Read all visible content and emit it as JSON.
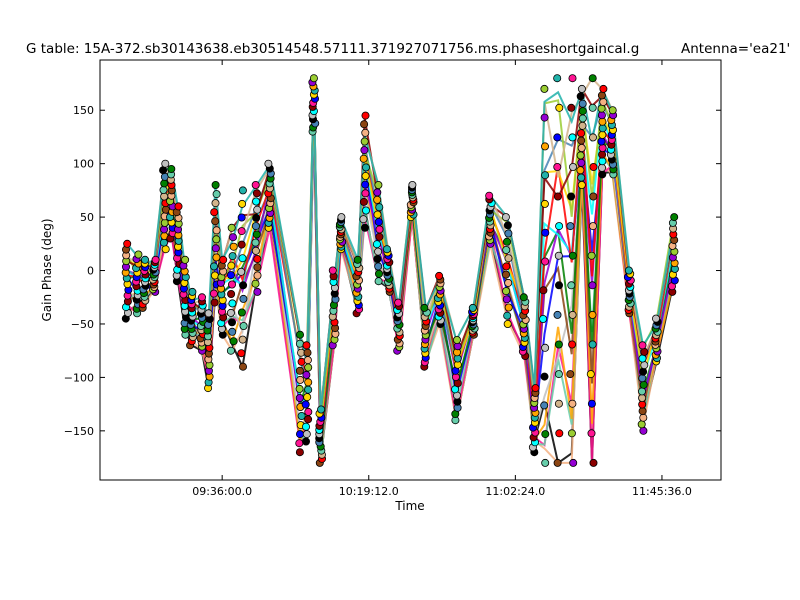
{
  "chart_data": {
    "type": "scatter",
    "title": "G table: 15A-372.sb30143638.eb30514548.57111.371927071756.ms.phaseshortgaincal.g",
    "subtitle": "Antenna='ea21'",
    "xlabel": "Time",
    "ylabel": "Gain Phase (deg)",
    "x_ticks": [
      "09:36:00.0",
      "10:19:12.0",
      "11:02:24.0",
      "11:45:36.0"
    ],
    "x_tick_minutes": [
      576,
      619.2,
      662.4,
      705.6
    ],
    "xlim_minutes": [
      540,
      723
    ],
    "ylim": [
      -196,
      197
    ],
    "y_ticks": [
      150,
      100,
      50,
      0,
      -50,
      -100,
      -150
    ],
    "grid": false,
    "legend": "none",
    "palette": [
      "#000000",
      "#f4b183",
      "#ff1493",
      "#66cdaa",
      "#ffa500",
      "#c0c0c0",
      "#8b4513",
      "#0000ff",
      "#008000",
      "#9400d3",
      "#00ffff",
      "#ff0000",
      "#ffd700",
      "#4682b4",
      "#9acd32",
      "#8b0000",
      "#d2b48c",
      "#20b2aa"
    ],
    "scans": [
      {
        "t": 548,
        "min": -45,
        "max": 25
      },
      {
        "t": 551,
        "min": -40,
        "max": 15
      },
      {
        "t": 553,
        "min": -35,
        "max": 10
      },
      {
        "t": 556,
        "min": -20,
        "max": 10
      },
      {
        "t": 559,
        "min": 20,
        "max": 100
      },
      {
        "t": 561,
        "min": 30,
        "max": 95
      },
      {
        "t": 563,
        "min": -10,
        "max": 60
      },
      {
        "t": 565,
        "min": -60,
        "max": 10
      },
      {
        "t": 567,
        "min": -70,
        "max": -20
      },
      {
        "t": 570,
        "min": -75,
        "max": -25
      },
      {
        "t": 572,
        "min": -110,
        "max": -40
      },
      {
        "t": 574,
        "min": -30,
        "max": 80
      },
      {
        "t": 576,
        "min": -60,
        "max": 10
      },
      {
        "t": 579,
        "min": -75,
        "max": 40
      },
      {
        "t": 582,
        "min": -90,
        "max": 75
      },
      {
        "t": 586,
        "min": -20,
        "max": 80
      },
      {
        "t": 590,
        "min": 40,
        "max": 100
      },
      {
        "t": 599,
        "min": -170,
        "max": -60
      },
      {
        "t": 601,
        "min": -160,
        "max": -70
      },
      {
        "t": 603,
        "min": 130,
        "max": 180
      },
      {
        "t": 605,
        "min": -180,
        "max": -130
      },
      {
        "t": 609,
        "min": -70,
        "max": 0
      },
      {
        "t": 611,
        "min": 20,
        "max": 50
      },
      {
        "t": 616,
        "min": -40,
        "max": 10
      },
      {
        "t": 618,
        "min": 40,
        "max": 145
      },
      {
        "t": 622,
        "min": -10,
        "max": 80
      },
      {
        "t": 625,
        "min": -20,
        "max": 20
      },
      {
        "t": 628,
        "min": -75,
        "max": -30
      },
      {
        "t": 632,
        "min": 50,
        "max": 80
      },
      {
        "t": 636,
        "min": -90,
        "max": -35
      },
      {
        "t": 640,
        "min": -50,
        "max": -5
      },
      {
        "t": 645,
        "min": -140,
        "max": -65
      },
      {
        "t": 650,
        "min": -60,
        "max": -35
      },
      {
        "t": 655,
        "min": 25,
        "max": 70
      },
      {
        "t": 660,
        "min": -50,
        "max": 50
      },
      {
        "t": 665,
        "min": -80,
        "max": -25
      },
      {
        "t": 668,
        "min": -170,
        "max": -110
      },
      {
        "t": 671,
        "min": -180,
        "max": 170
      },
      {
        "t": 675,
        "min": -180,
        "max": 180
      },
      {
        "t": 679,
        "min": -180,
        "max": 180
      },
      {
        "t": 682,
        "min": 80,
        "max": 170
      },
      {
        "t": 685,
        "min": -180,
        "max": 180
      },
      {
        "t": 688,
        "min": 90,
        "max": 170
      },
      {
        "t": 691,
        "min": 90,
        "max": 150
      },
      {
        "t": 696,
        "min": -40,
        "max": 0
      },
      {
        "t": 700,
        "min": -150,
        "max": -70
      },
      {
        "t": 704,
        "min": -85,
        "max": -45
      },
      {
        "t": 709,
        "min": -20,
        "max": 50
      }
    ]
  }
}
